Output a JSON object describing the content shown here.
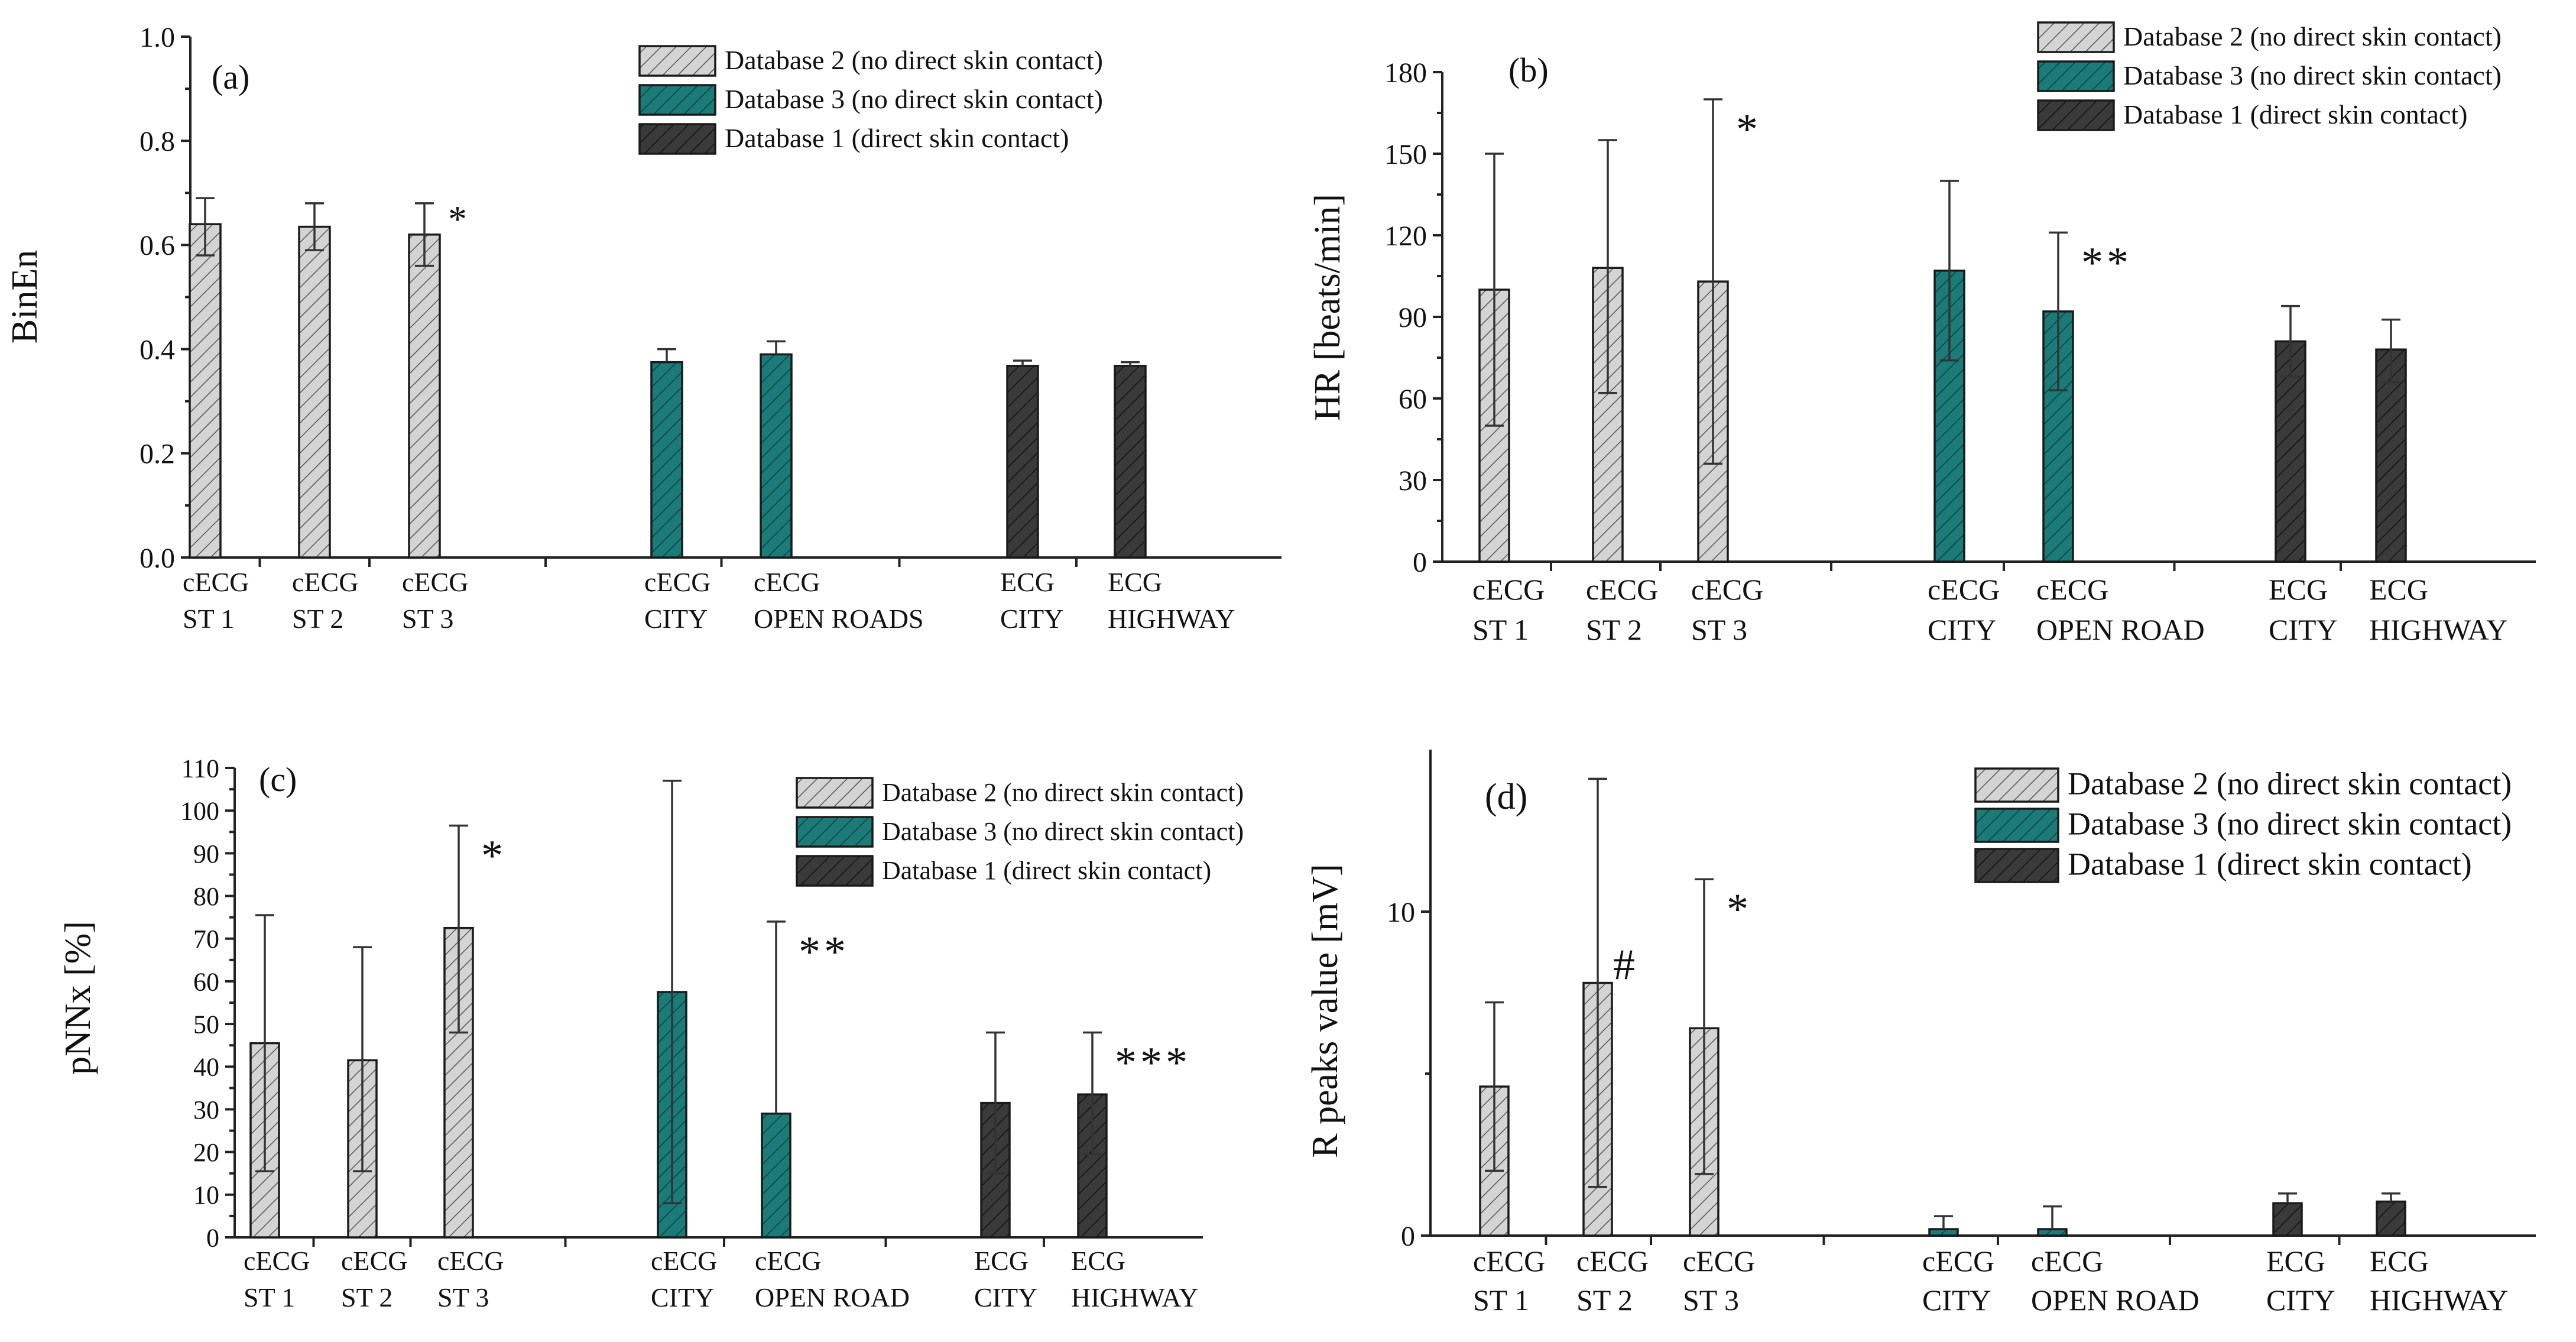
{
  "colors": {
    "database2": "#d4d4d4",
    "database3": "#1a7b78",
    "database1": "#3a3a3a",
    "axis": "#222222"
  },
  "legend": {
    "database2": "Database 2 (no direct skin contact)",
    "database3": "Database 3 (no direct skin contact)",
    "database1": "Database 1 (direct skin contact)"
  },
  "chart_data": [
    {
      "panel": "(a)",
      "type": "bar",
      "ylabel": "BinEn",
      "xlabel": "",
      "ylim": [
        0,
        1.0
      ],
      "yticks": [
        "0.0",
        "0.2",
        "0.4",
        "0.6",
        "0.8",
        "1.0"
      ],
      "legend_order": [
        "database2",
        "database3",
        "database1"
      ],
      "categories": [
        {
          "line1": "cECG",
          "line2": "ST 1"
        },
        {
          "line1": "cECG",
          "line2": "ST 2"
        },
        {
          "line1": "cECG",
          "line2": "ST 3"
        },
        {
          "line1": "cECG",
          "line2": "CITY"
        },
        {
          "line1": "cECG",
          "line2": "OPEN ROADS"
        },
        {
          "line1": "ECG",
          "line2": "CITY"
        },
        {
          "line1": "ECG",
          "line2": "HIGHWAY"
        }
      ],
      "bars": [
        {
          "series": "database2",
          "value": 0.64,
          "err_low": 0.58,
          "err_high": 0.69,
          "annotation": ""
        },
        {
          "series": "database2",
          "value": 0.635,
          "err_low": 0.59,
          "err_high": 0.68,
          "annotation": ""
        },
        {
          "series": "database2",
          "value": 0.62,
          "err_low": 0.56,
          "err_high": 0.68,
          "annotation": "*"
        },
        {
          "series": "database3",
          "value": 0.375,
          "err_low": 0.375,
          "err_high": 0.4,
          "annotation": ""
        },
        {
          "series": "database3",
          "value": 0.39,
          "err_low": 0.39,
          "err_high": 0.415,
          "annotation": ""
        },
        {
          "series": "database1",
          "value": 0.368,
          "err_low": 0.368,
          "err_high": 0.378,
          "annotation": ""
        },
        {
          "series": "database1",
          "value": 0.368,
          "err_low": 0.368,
          "err_high": 0.375,
          "annotation": ""
        }
      ]
    },
    {
      "panel": "(b)",
      "type": "bar",
      "ylabel": "HR [beats/min]",
      "xlabel": "",
      "ylim": [
        0,
        180
      ],
      "yticks": [
        "0",
        "30",
        "60",
        "90",
        "120",
        "150",
        "180"
      ],
      "legend_order": [
        "database2",
        "database3",
        "database1"
      ],
      "categories": [
        {
          "line1": "cECG",
          "line2": "ST 1"
        },
        {
          "line1": "cECG",
          "line2": "ST 2"
        },
        {
          "line1": "cECG",
          "line2": "ST 3"
        },
        {
          "line1": "cECG",
          "line2": "CITY"
        },
        {
          "line1": "cECG",
          "line2": "OPEN ROAD"
        },
        {
          "line1": "ECG",
          "line2": "CITY"
        },
        {
          "line1": "ECG",
          "line2": "HIGHWAY"
        }
      ],
      "bars": [
        {
          "series": "database2",
          "value": 100,
          "err_low": 50,
          "err_high": 150,
          "annotation": ""
        },
        {
          "series": "database2",
          "value": 108,
          "err_low": 62,
          "err_high": 155,
          "annotation": ""
        },
        {
          "series": "database2",
          "value": 103,
          "err_low": 36,
          "err_high": 170,
          "annotation": "*"
        },
        {
          "series": "database3",
          "value": 107,
          "err_low": 74,
          "err_high": 140,
          "annotation": ""
        },
        {
          "series": "database3",
          "value": 92,
          "err_low": 63,
          "err_high": 121,
          "annotation": "**"
        },
        {
          "series": "database1",
          "value": 81,
          "err_low": 68,
          "err_high": 94,
          "annotation": ""
        },
        {
          "series": "database1",
          "value": 78,
          "err_low": 66,
          "err_high": 89,
          "annotation": ""
        }
      ]
    },
    {
      "panel": "(c)",
      "type": "bar",
      "ylabel": "pNNx  [%]",
      "xlabel": "",
      "ylim": [
        0,
        110
      ],
      "yticks": [
        "0",
        "10",
        "20",
        "30",
        "40",
        "50",
        "60",
        "70",
        "80",
        "90",
        "100",
        "110"
      ],
      "legend_order": [
        "database2",
        "database3",
        "database1"
      ],
      "categories": [
        {
          "line1": "cECG",
          "line2": "ST 1"
        },
        {
          "line1": "cECG",
          "line2": "ST 2"
        },
        {
          "line1": "cECG",
          "line2": "ST 3"
        },
        {
          "line1": "cECG",
          "line2": "CITY"
        },
        {
          "line1": "cECG",
          "line2": "OPEN ROAD"
        },
        {
          "line1": "ECG",
          "line2": "CITY"
        },
        {
          "line1": "ECG",
          "line2": "HIGHWAY"
        }
      ],
      "bars": [
        {
          "series": "database2",
          "value": 45.5,
          "err_low": 15.5,
          "err_high": 75.5,
          "annotation": ""
        },
        {
          "series": "database2",
          "value": 41.5,
          "err_low": 15.5,
          "err_high": 68,
          "annotation": ""
        },
        {
          "series": "database2",
          "value": 72.5,
          "err_low": 48,
          "err_high": 96.5,
          "annotation": "*"
        },
        {
          "series": "database3",
          "value": 57.5,
          "err_low": 8,
          "err_high": 107,
          "annotation": ""
        },
        {
          "series": "database3",
          "value": 29,
          "err_low": 29,
          "err_high": 74,
          "annotation": "**"
        },
        {
          "series": "database1",
          "value": 31.5,
          "err_low": 15,
          "err_high": 48,
          "annotation": ""
        },
        {
          "series": "database1",
          "value": 33.5,
          "err_low": 19.5,
          "err_high": 48,
          "annotation": "***"
        }
      ]
    },
    {
      "panel": "(d)",
      "type": "bar",
      "ylabel": "R peaks value [mV]",
      "xlabel": "",
      "ylim": [
        0,
        15
      ],
      "yticks": [
        "0",
        "10"
      ],
      "legend_order": [
        "database2",
        "database3",
        "database1"
      ],
      "categories": [
        {
          "line1": "cECG",
          "line2": "ST 1"
        },
        {
          "line1": "cECG",
          "line2": "ST 2"
        },
        {
          "line1": "cECG",
          "line2": "ST 3"
        },
        {
          "line1": "cECG",
          "line2": "CITY"
        },
        {
          "line1": "cECG",
          "line2": "OPEN ROAD"
        },
        {
          "line1": "ECG",
          "line2": "CITY"
        },
        {
          "line1": "ECG",
          "line2": "HIGHWAY"
        }
      ],
      "bars": [
        {
          "series": "database2",
          "value": 4.6,
          "err_low": 2.0,
          "err_high": 7.2,
          "annotation": ""
        },
        {
          "series": "database2",
          "value": 7.8,
          "err_low": 1.5,
          "err_high": 14.1,
          "annotation": "#"
        },
        {
          "series": "database2",
          "value": 6.4,
          "err_low": 1.9,
          "err_high": 11.0,
          "annotation": "*"
        },
        {
          "series": "database3",
          "value": 0.2,
          "err_low": 0.2,
          "err_high": 0.6,
          "annotation": ""
        },
        {
          "series": "database3",
          "value": 0.2,
          "err_low": 0.2,
          "err_high": 0.9,
          "annotation": ""
        },
        {
          "series": "database1",
          "value": 1.0,
          "err_low": 1.0,
          "err_high": 1.3,
          "annotation": ""
        },
        {
          "series": "database1",
          "value": 1.05,
          "err_low": 1.05,
          "err_high": 1.3,
          "annotation": ""
        }
      ]
    }
  ]
}
